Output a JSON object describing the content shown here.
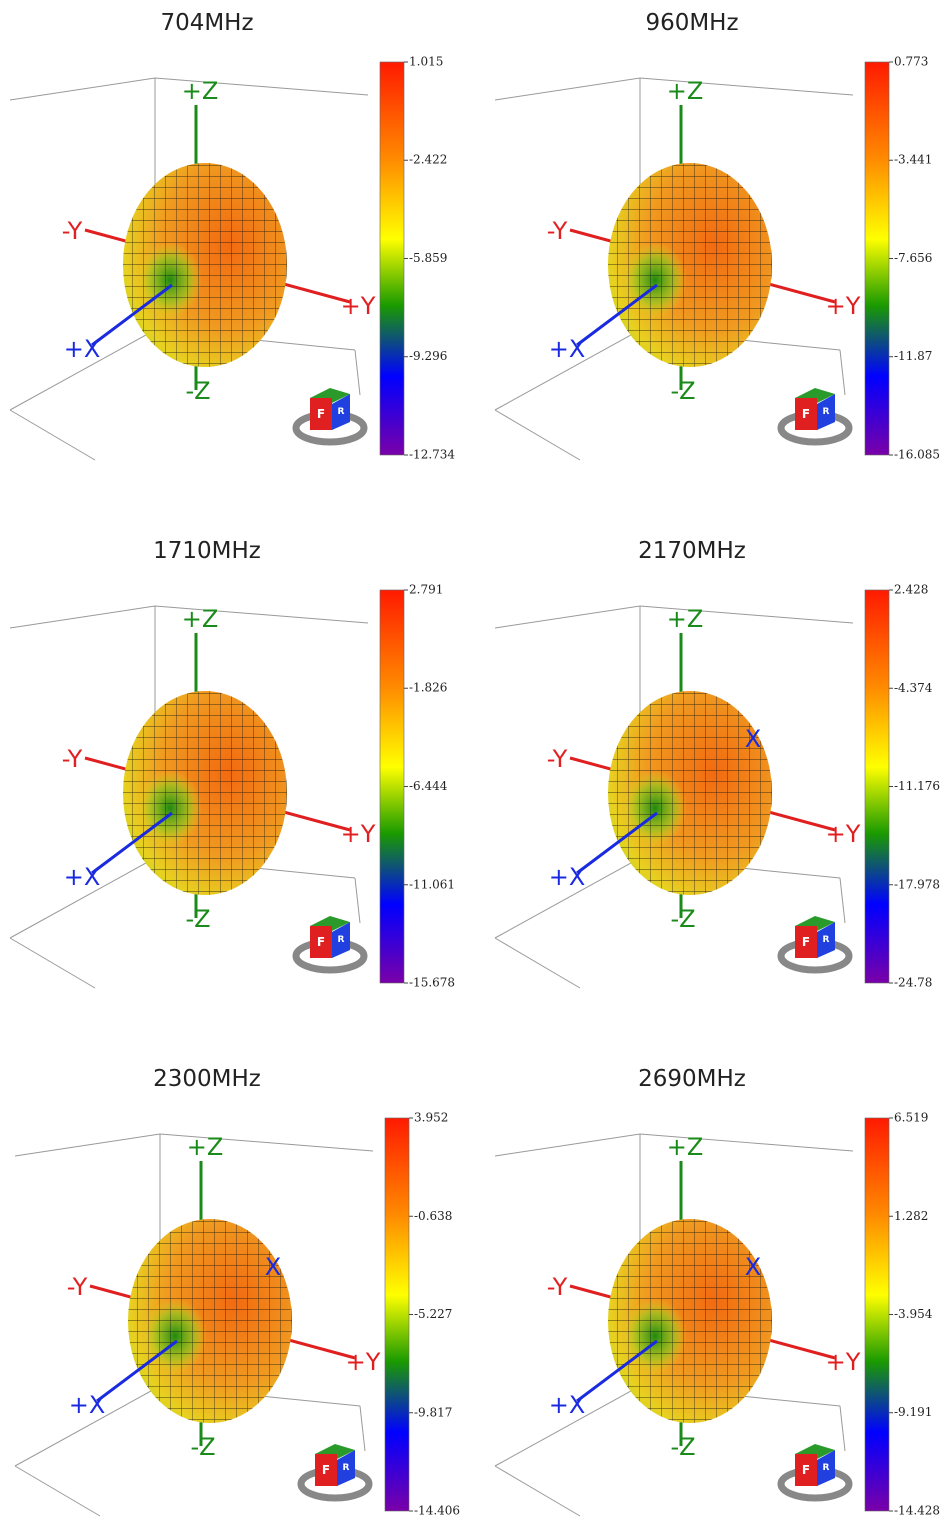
{
  "panels": [
    {
      "title": "704MHz",
      "colorbar": [
        1.015,
        -2.422,
        -5.859,
        -9.296,
        -12.734
      ],
      "axes": {
        "z_pos": "+Z",
        "z_neg": "-Z",
        "y_neg": "-Y",
        "y_pos": "+Y",
        "x_pos": "+X"
      }
    },
    {
      "title": "960MHz",
      "colorbar": [
        0.773,
        -3.441,
        -7.656,
        -11.87,
        -16.085
      ],
      "axes": {
        "z_pos": "+Z",
        "z_neg": "-Z",
        "y_neg": "-Y",
        "y_pos": "+Y",
        "x_pos": "+X"
      }
    },
    {
      "title": "1710MHz",
      "colorbar": [
        2.791,
        -1.826,
        -6.444,
        -11.061,
        -15.678
      ],
      "axes": {
        "z_pos": "+Z",
        "z_neg": "-Z",
        "y_neg": "-Y",
        "y_pos": "+Y",
        "x_pos": "+X"
      }
    },
    {
      "title": "2170MHz",
      "colorbar": [
        2.428,
        -4.374,
        -11.176,
        -17.978,
        -24.78
      ],
      "axes": {
        "z_pos": "+Z",
        "z_neg": "-Z",
        "y_neg": "-Y",
        "y_pos": "+Y",
        "x_pos": "+X",
        "x_neg": "X"
      }
    },
    {
      "title": "2300MHz",
      "colorbar": [
        3.952,
        -0.638,
        -5.227,
        -9.817,
        -14.406
      ],
      "axes": {
        "z_pos": "+Z",
        "z_neg": "-Z",
        "y_neg": "-Y",
        "y_pos": "+Y",
        "x_pos": "+X",
        "x_neg": "X"
      }
    },
    {
      "title": "2690MHz",
      "colorbar": [
        6.519,
        1.282,
        -3.954,
        -9.191,
        -14.428
      ],
      "axes": {
        "z_pos": "+Z",
        "z_neg": "-Z",
        "y_neg": "-Y",
        "y_pos": "+Y",
        "x_pos": "+X",
        "x_neg": "X"
      }
    }
  ],
  "view_cube": {
    "front": "F",
    "right": "R"
  }
}
